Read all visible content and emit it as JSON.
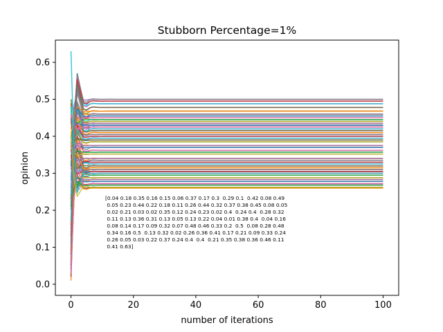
{
  "chart_data": {
    "type": "line",
    "title": "Stubborn Percentage=1%",
    "xlabel": "number of iterations",
    "ylabel": "opinion",
    "xlim": [
      -5,
      105
    ],
    "ylim": [
      -0.03,
      0.66
    ],
    "xticks": [
      0,
      20,
      40,
      60,
      80,
      100
    ],
    "yticks": [
      0.0,
      0.1,
      0.2,
      0.3,
      0.4,
      0.5,
      0.6
    ],
    "xtick_labels": [
      "0",
      "20",
      "40",
      "60",
      "80",
      "100"
    ],
    "ytick_labels": [
      "0.0",
      "0.1",
      "0.2",
      "0.3",
      "0.4",
      "0.5",
      "0.6"
    ],
    "iterations": 100,
    "initial_opinions": [
      0.04,
      0.18,
      0.35,
      0.16,
      0.15,
      0.06,
      0.37,
      0.17,
      0.3,
      0.29,
      0.1,
      0.42,
      0.08,
      0.49,
      0.05,
      0.23,
      0.44,
      0.22,
      0.18,
      0.11,
      0.26,
      0.44,
      0.32,
      0.37,
      0.38,
      0.45,
      0.08,
      0.05,
      0.02,
      0.21,
      0.03,
      0.02,
      0.35,
      0.12,
      0.24,
      0.23,
      0.02,
      0.4,
      0.24,
      0.4,
      0.28,
      0.32,
      0.11,
      0.13,
      0.36,
      0.31,
      0.13,
      0.05,
      0.13,
      0.22,
      0.04,
      0.01,
      0.38,
      0.4,
      0.04,
      0.16,
      0.08,
      0.14,
      0.17,
      0.09,
      0.32,
      0.07,
      0.48,
      0.46,
      0.33,
      0.2,
      0.5,
      0.08,
      0.28,
      0.48,
      0.34,
      0.16,
      0.5,
      0.13,
      0.32,
      0.02,
      0.26,
      0.36,
      0.41,
      0.17,
      0.21,
      0.09,
      0.33,
      0.24,
      0.26,
      0.05,
      0.03,
      0.22,
      0.37,
      0.24,
      0.4,
      0.4,
      0.21,
      0.35,
      0.38,
      0.36,
      0.46,
      0.11,
      0.41,
      0.63
    ],
    "final_opinions": [
      0.26,
      0.262,
      0.268,
      0.272,
      0.278,
      0.283,
      0.288,
      0.295,
      0.3,
      0.305,
      0.31,
      0.315,
      0.32,
      0.325,
      0.33,
      0.335,
      0.34,
      0.352,
      0.357,
      0.362,
      0.37,
      0.375,
      0.385,
      0.39,
      0.395,
      0.4,
      0.405,
      0.41,
      0.415,
      0.42,
      0.425,
      0.43,
      0.435,
      0.44,
      0.445,
      0.45,
      0.455,
      0.46,
      0.468,
      0.478,
      0.488,
      0.495,
      0.5
    ],
    "series_colors": [
      "#1f77b4",
      "#ff7f0e",
      "#2ca02c",
      "#d62728",
      "#9467bd",
      "#8c564b",
      "#e377c2",
      "#7f7f7f",
      "#bcbd22",
      "#17becf"
    ],
    "annotation_lines": [
      "[0.04 0.18 0.35 0.16 0.15 0.06 0.37 0.17 0.3  0.29 0.1  0.42 0.08 0.49",
      " 0.05 0.23 0.44 0.22 0.18 0.11 0.26 0.44 0.32 0.37 0.38 0.45 0.08 0.05",
      " 0.02 0.21 0.03 0.02 0.35 0.12 0.24 0.23 0.02 0.4  0.24 0.4  0.28 0.32",
      " 0.11 0.13 0.36 0.31 0.13 0.05 0.13 0.22 0.04 0.01 0.38 0.4  0.04 0.16",
      " 0.08 0.14 0.17 0.09 0.32 0.07 0.48 0.46 0.33 0.2  0.5  0.08 0.28 0.48",
      " 0.34 0.16 0.5  0.13 0.32 0.02 0.26 0.36 0.41 0.17 0.21 0.09 0.33 0.24",
      " 0.26 0.05 0.03 0.22 0.37 0.24 0.4  0.4  0.21 0.35 0.38 0.36 0.46 0.11",
      " 0.41 0.63]"
    ],
    "grid": false,
    "legend": "none"
  }
}
